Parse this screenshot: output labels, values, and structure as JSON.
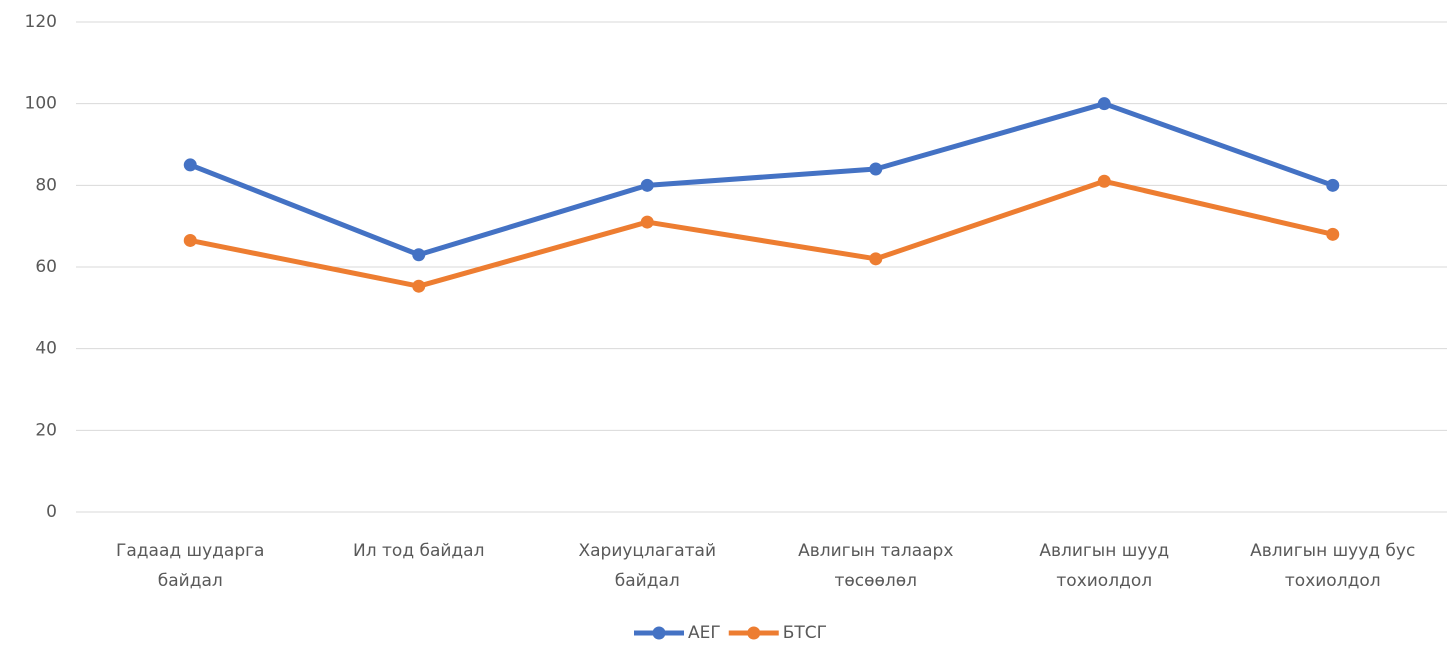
{
  "chart_data": {
    "type": "line",
    "categories": [
      "Гадаад шударга байдал",
      "Ил тод байдал",
      "Хариуцлагатай байдал",
      "Авлигын талаарх төсөөлөл",
      "Авлигын шууд тохиолдол",
      "Авлигын шууд бус тохиолдол"
    ],
    "series": [
      {
        "name": "АЕГ",
        "color": "#4472c4",
        "values": [
          85,
          63,
          80,
          84,
          100,
          80
        ]
      },
      {
        "name": "БТСГ",
        "color": "#ed7d31",
        "values": [
          66.5,
          55.3,
          71,
          62,
          81,
          68
        ]
      }
    ],
    "ylim": [
      0,
      120
    ],
    "yticks": [
      0,
      20,
      40,
      60,
      80,
      100,
      120
    ],
    "grid": true,
    "legend": "bottom"
  }
}
